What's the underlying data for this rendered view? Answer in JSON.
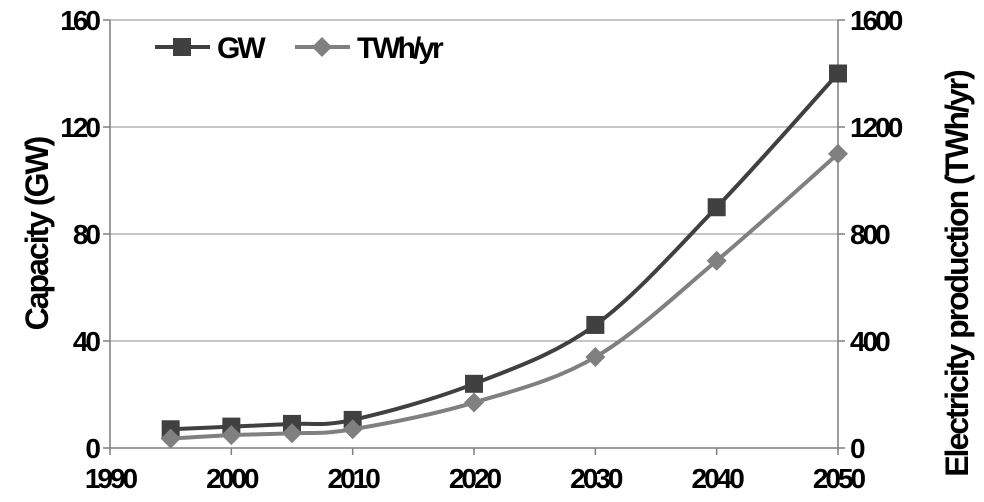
{
  "chart_data": {
    "type": "line",
    "x_ticks": [
      "1990",
      "2000",
      "2010",
      "2020",
      "2030",
      "2040",
      "2050"
    ],
    "x_tick_values": [
      1990,
      2000,
      2010,
      2020,
      2030,
      2040,
      2050
    ],
    "xlim": [
      1990,
      2050
    ],
    "ylabel_left": "Capacity (GW)",
    "ylabel_right": "Electricity production (TWh/yr)",
    "ylim_left": [
      0,
      160
    ],
    "ylim_right": [
      0,
      1600
    ],
    "yticks_left": [
      "0",
      "40",
      "80",
      "120",
      "160"
    ],
    "yticks_right": [
      "0",
      "400",
      "800",
      "1200",
      "1600"
    ],
    "grid": "horizontal",
    "legend_position": "top-left",
    "series": [
      {
        "name": "GW",
        "axis": "left",
        "color": "#404040",
        "marker": "square",
        "x": [
          1995,
          2000,
          2005,
          2010,
          2020,
          2030,
          2040,
          2050
        ],
        "y": [
          7,
          8,
          9,
          10.5,
          24,
          46,
          90,
          140
        ]
      },
      {
        "name": "TWh/yr",
        "axis": "right",
        "color": "#808080",
        "marker": "diamond",
        "x": [
          1995,
          2000,
          2005,
          2010,
          2020,
          2030,
          2040,
          2050
        ],
        "y": [
          35,
          48,
          55,
          70,
          170,
          340,
          700,
          1100
        ]
      }
    ]
  }
}
